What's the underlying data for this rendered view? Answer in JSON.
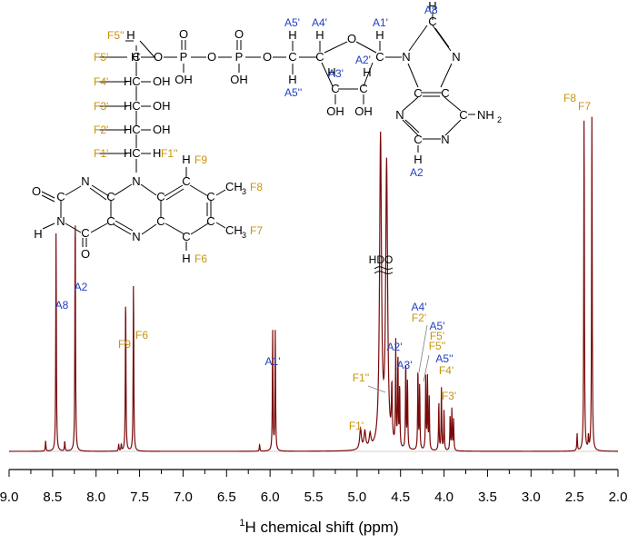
{
  "colors": {
    "spectrum": "#7a0a0a",
    "adenine_labels": "#1f3fbf",
    "flavin_labels": "#c8940c",
    "text": "#000000"
  },
  "chart_data": {
    "type": "line",
    "title": "",
    "xlabel": "chemical shift (ppm)",
    "xlabel_sup": "1",
    "xlabel_nucleus": "H",
    "xlim": [
      9.0,
      2.0
    ],
    "reversed_x": true,
    "grid": false,
    "ylabel": "",
    "y_axis_visible": false,
    "series": [
      {
        "color": "#7a0a0a",
        "peaks": [
          {
            "x": 8.58,
            "h": 0.03,
            "w": 0.004
          },
          {
            "x": 8.46,
            "h": 0.64,
            "w": 0.004
          },
          {
            "x": 8.36,
            "h": 0.03,
            "w": 0.004
          },
          {
            "x": 8.24,
            "h": 0.72,
            "w": 0.004
          },
          {
            "x": 7.74,
            "h": 0.02,
            "w": 0.004
          },
          {
            "x": 7.71,
            "h": 0.02,
            "w": 0.004
          },
          {
            "x": 7.66,
            "h": 0.46,
            "w": 0.004
          },
          {
            "x": 7.57,
            "h": 0.5,
            "w": 0.004
          },
          {
            "x": 6.12,
            "h": 0.02,
            "w": 0.004
          },
          {
            "x": 5.97,
            "h": 0.35,
            "w": 0.004
          },
          {
            "x": 5.94,
            "h": 0.35,
            "w": 0.004
          },
          {
            "x": 4.96,
            "h": 0.06,
            "w": 0.012
          },
          {
            "x": 4.91,
            "h": 0.05,
            "w": 0.012
          },
          {
            "x": 4.85,
            "h": 0.04,
            "w": 0.012
          },
          {
            "x": 4.73,
            "h": 0.9,
            "w": 0.013
          },
          {
            "x": 4.66,
            "h": 0.82,
            "w": 0.013
          },
          {
            "x": 4.6,
            "h": 0.16,
            "w": 0.006
          },
          {
            "x": 4.555,
            "h": 0.3,
            "w": 0.004
          },
          {
            "x": 4.53,
            "h": 0.27,
            "w": 0.004
          },
          {
            "x": 4.51,
            "h": 0.18,
            "w": 0.004
          },
          {
            "x": 4.44,
            "h": 0.26,
            "w": 0.004
          },
          {
            "x": 4.42,
            "h": 0.2,
            "w": 0.004
          },
          {
            "x": 4.3,
            "h": 0.24,
            "w": 0.004
          },
          {
            "x": 4.28,
            "h": 0.19,
            "w": 0.004
          },
          {
            "x": 4.21,
            "h": 0.22,
            "w": 0.004
          },
          {
            "x": 4.19,
            "h": 0.21,
            "w": 0.004
          },
          {
            "x": 4.17,
            "h": 0.15,
            "w": 0.004
          },
          {
            "x": 4.06,
            "h": 0.14,
            "w": 0.004
          },
          {
            "x": 4.03,
            "h": 0.18,
            "w": 0.004
          },
          {
            "x": 4.0,
            "h": 0.12,
            "w": 0.004
          },
          {
            "x": 3.93,
            "h": 0.1,
            "w": 0.004
          },
          {
            "x": 3.91,
            "h": 0.12,
            "w": 0.004
          },
          {
            "x": 3.89,
            "h": 0.09,
            "w": 0.004
          },
          {
            "x": 2.47,
            "h": 0.05,
            "w": 0.004
          },
          {
            "x": 2.39,
            "h": 1.0,
            "w": 0.004
          },
          {
            "x": 2.34,
            "h": 0.04,
            "w": 0.004
          },
          {
            "x": 2.3,
            "h": 0.98,
            "w": 0.004
          }
        ]
      }
    ],
    "ticks": [
      "9.0",
      "8.5",
      "8.0",
      "7.5",
      "7.0",
      "6.5",
      "6.0",
      "5.5",
      "5.0",
      "4.5",
      "4.0",
      "3.5",
      "3.0",
      "2.5",
      "2.0"
    ],
    "annotations": {
      "hdo": "HDO",
      "a8": "A8",
      "a2": "A2",
      "f9": "F9",
      "f6": "F6",
      "a1p": "A1'",
      "f1p": "F1'",
      "f1pp": "F1''",
      "a2p": "A2'",
      "a3p": "A3'",
      "a4p": "A4'",
      "f2p": "F2'",
      "a5p": "A5'",
      "f5p": "F5'",
      "f5pp": "F5''",
      "a5pp": "A5''",
      "f4p": "F4'",
      "f3p": "F3'",
      "f8": "F8",
      "f7": "F7"
    }
  },
  "structure": {
    "flavin_labels": {
      "f5pp": "F5''",
      "f5p": "F5'",
      "f4p": "F4'",
      "f3p": "F3'",
      "f2p": "F2'",
      "f1p": "F1'",
      "f1pp": "F1''",
      "f9": "F9",
      "f8": "F8",
      "f7": "F7",
      "f6": "F6"
    },
    "adenine_labels": {
      "a5p": "A5'",
      "a4p": "A4'",
      "a3p": "A3'",
      "a2p": "A2'",
      "a1p": "A1'",
      "a5pp": "A5''",
      "a8": "A8",
      "a2": "A2"
    },
    "atoms": {
      "H": "H",
      "C": "C",
      "O": "O",
      "P": "P",
      "N": "N",
      "OH": "OH",
      "CH3": "CH",
      "sub3": "3",
      "NH2": "NH",
      "sub2": "2"
    }
  }
}
